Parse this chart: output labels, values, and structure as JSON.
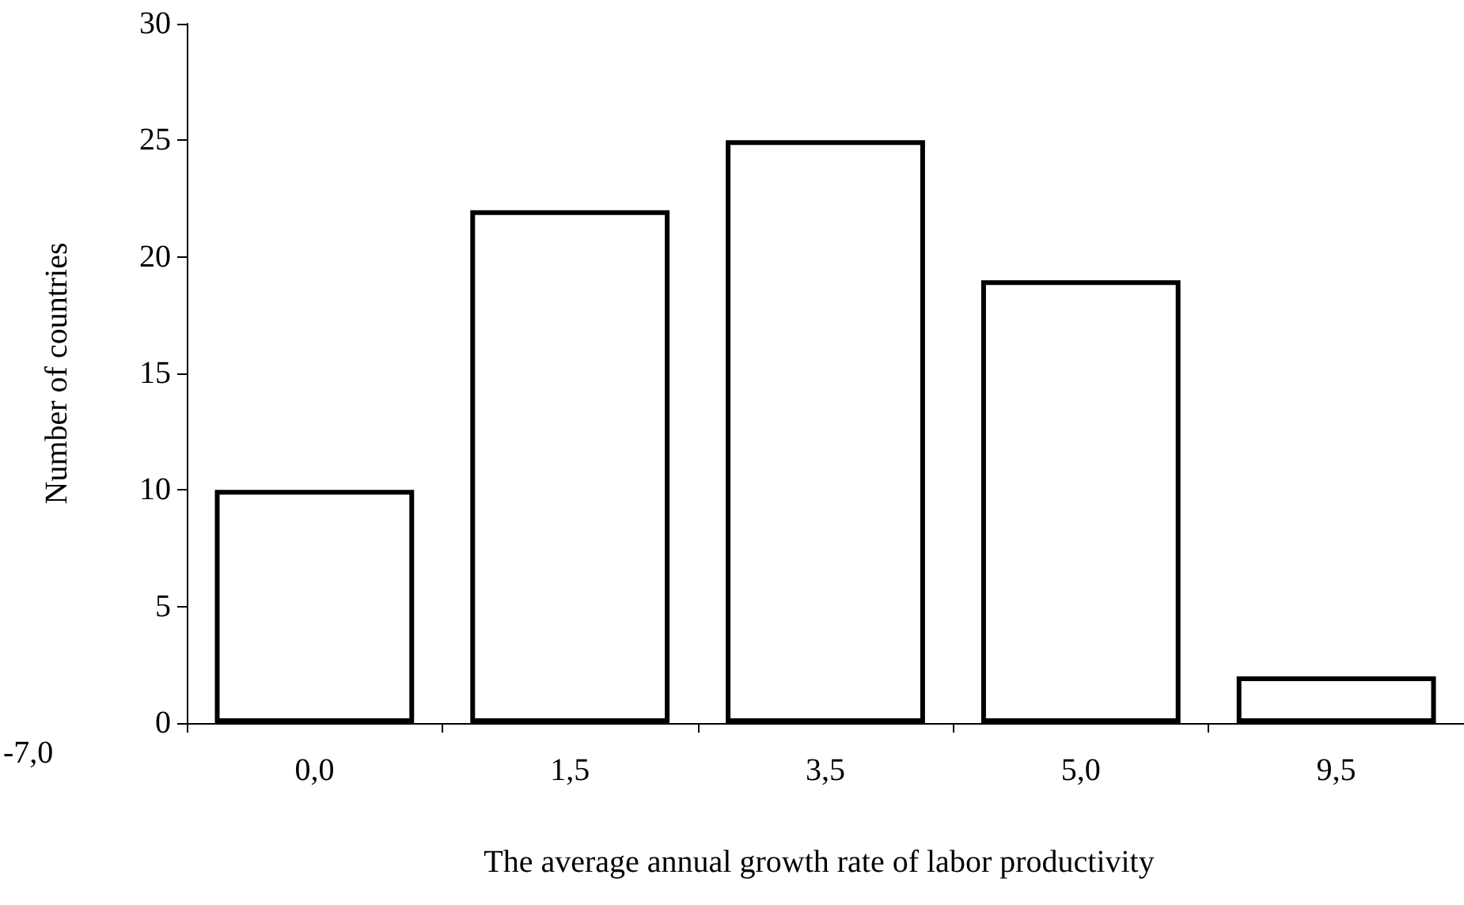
{
  "chart_data": {
    "type": "bar",
    "xlabel": "The average annual growth rate of labor productivity",
    "ylabel": "Number of countries",
    "categories": [
      "0,0",
      "1,5",
      "3,5",
      "5,0",
      "9,5"
    ],
    "series": [
      {
        "color": "#ffffff",
        "values": [
          10,
          22,
          25,
          19,
          2
        ]
      }
    ],
    "annotations": [
      "-7,0"
    ],
    "ylim": [
      0,
      30
    ],
    "yticks": [
      0,
      5,
      10,
      15,
      20,
      25,
      30
    ]
  }
}
